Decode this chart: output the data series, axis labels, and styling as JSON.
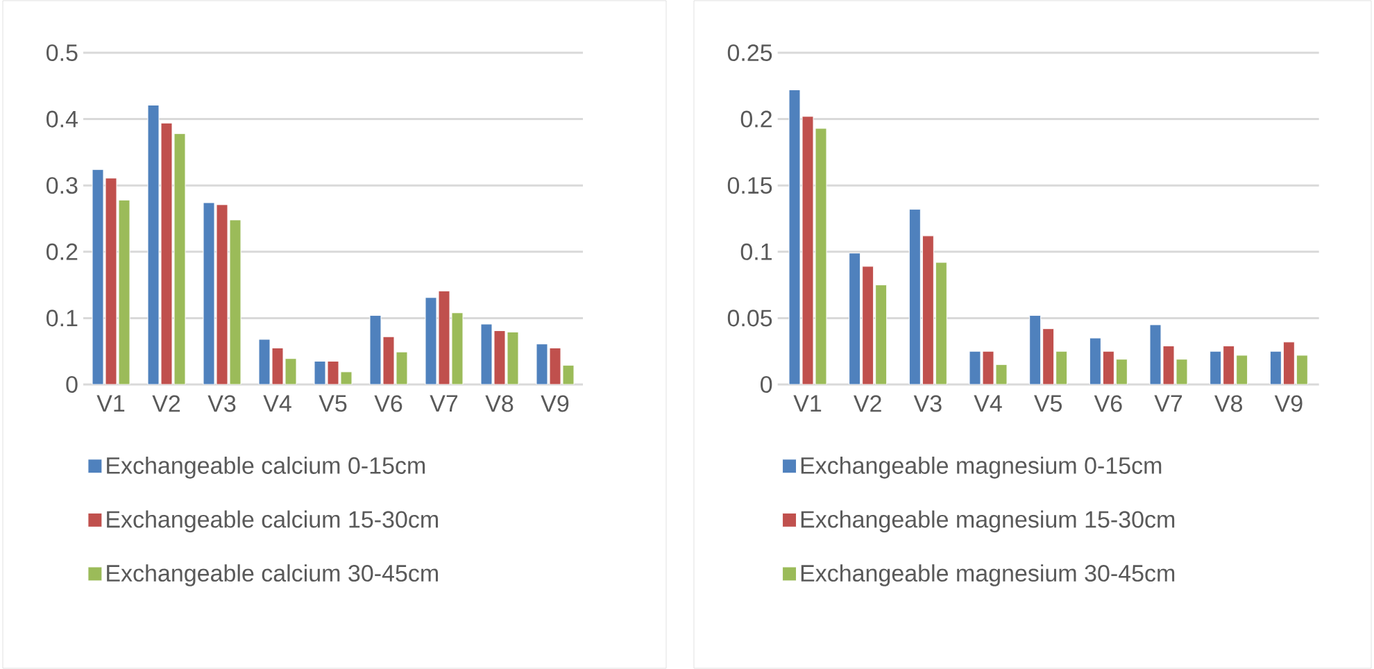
{
  "chart_data": [
    {
      "type": "bar",
      "categories": [
        "V1",
        "V2",
        "V3",
        "V4",
        "V5",
        "V6",
        "V7",
        "V8",
        "V9"
      ],
      "ylim": [
        0,
        0.5
      ],
      "yticks": [
        0,
        0.1,
        0.2,
        0.3,
        0.4,
        0.5
      ],
      "grid": "y",
      "legend": "bottom",
      "series": [
        {
          "name": "Exchangeable calcium 0-15cm",
          "color": "#4f81bd",
          "values": [
            0.324,
            0.421,
            0.274,
            0.068,
            0.035,
            0.104,
            0.131,
            0.091,
            0.061
          ]
        },
        {
          "name": "Exchangeable calcium 15-30cm",
          "color": "#c0504d",
          "values": [
            0.311,
            0.394,
            0.271,
            0.055,
            0.035,
            0.072,
            0.141,
            0.081,
            0.055
          ]
        },
        {
          "name": "Exchangeable calcium 30-45cm",
          "color": "#9bbb59",
          "values": [
            0.278,
            0.378,
            0.248,
            0.039,
            0.019,
            0.049,
            0.108,
            0.079,
            0.029
          ]
        }
      ]
    },
    {
      "type": "bar",
      "categories": [
        "V1",
        "V2",
        "V3",
        "V4",
        "V5",
        "V6",
        "V7",
        "V8",
        "V9"
      ],
      "ylim": [
        0,
        0.25
      ],
      "yticks": [
        0,
        0.05,
        0.1,
        0.15,
        0.2,
        0.25
      ],
      "grid": "y",
      "legend": "bottom",
      "series": [
        {
          "name": "Exchangeable magnesium 0-15cm",
          "color": "#4f81bd",
          "values": [
            0.222,
            0.099,
            0.132,
            0.025,
            0.052,
            0.035,
            0.045,
            0.025,
            0.025
          ]
        },
        {
          "name": "Exchangeable magnesium 15-30cm",
          "color": "#c0504d",
          "values": [
            0.202,
            0.089,
            0.112,
            0.025,
            0.042,
            0.025,
            0.029,
            0.029,
            0.032
          ]
        },
        {
          "name": "Exchangeable magnesium 30-45cm",
          "color": "#9bbb59",
          "values": [
            0.193,
            0.075,
            0.092,
            0.015,
            0.025,
            0.019,
            0.019,
            0.022,
            0.022
          ]
        }
      ]
    }
  ]
}
